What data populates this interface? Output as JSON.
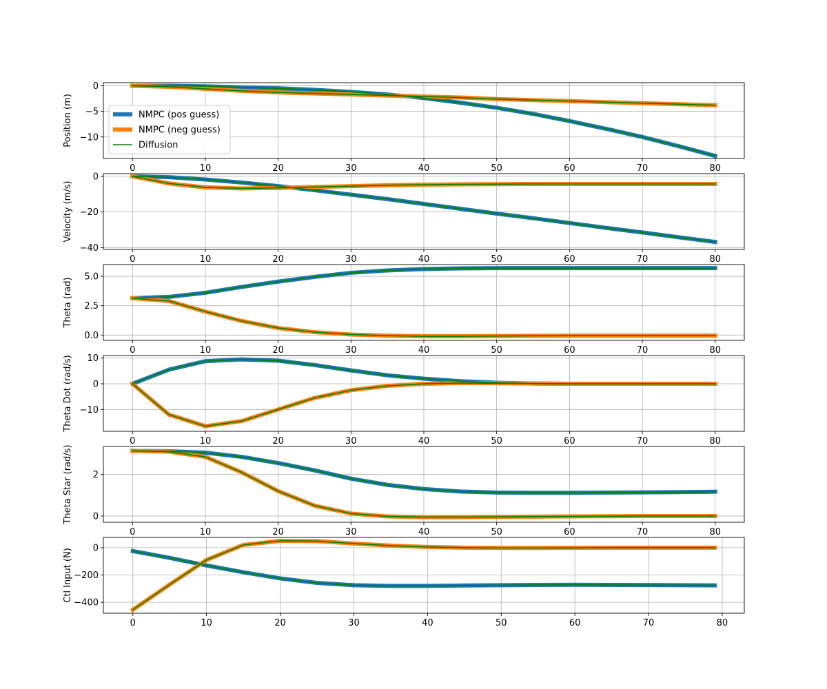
{
  "chart_data": [
    {
      "type": "line",
      "ylabel": "Position (m)",
      "xlim": [
        -4,
        84
      ],
      "ylim": [
        -14.2,
        0.6
      ],
      "xticks": [
        0,
        10,
        20,
        30,
        40,
        50,
        60,
        70,
        80
      ],
      "yticks": [
        0,
        -5,
        -10
      ],
      "ytick_labels": [
        "0",
        "−5",
        "−10"
      ],
      "grid": true,
      "legend": "center-left",
      "series": [
        {
          "name": "NMPC (pos guess)",
          "x": [
            0,
            5,
            10,
            15,
            20,
            25,
            30,
            35,
            40,
            45,
            50,
            55,
            60,
            65,
            70,
            75,
            80
          ],
          "values": [
            0,
            0,
            -0.1,
            -0.3,
            -0.5,
            -0.8,
            -1.2,
            -1.7,
            -2.4,
            -3.3,
            -4.3,
            -5.5,
            -6.9,
            -8.4,
            -10.0,
            -11.8,
            -13.7
          ]
        },
        {
          "name": "NMPC (neg guess)",
          "x": [
            0,
            5,
            10,
            15,
            20,
            25,
            30,
            35,
            40,
            45,
            50,
            55,
            60,
            65,
            70,
            75,
            80
          ],
          "values": [
            0,
            -0.2,
            -0.6,
            -1.0,
            -1.3,
            -1.5,
            -1.7,
            -1.9,
            -2.1,
            -2.3,
            -2.6,
            -2.8,
            -3.0,
            -3.2,
            -3.4,
            -3.6,
            -3.8
          ]
        },
        {
          "name": "Diffusion",
          "x": [
            0,
            5,
            10,
            15,
            20,
            25,
            30,
            35,
            40,
            45,
            50,
            55,
            60,
            65,
            70,
            75,
            80
          ],
          "values": [
            0,
            0,
            -0.1,
            -0.3,
            -0.5,
            -0.8,
            -1.2,
            -1.7,
            -2.4,
            -3.3,
            -4.3,
            -5.5,
            -6.9,
            -8.4,
            -10.0,
            -11.8,
            -13.7
          ]
        },
        {
          "name": "Diffusion",
          "x": [
            0,
            5,
            10,
            15,
            20,
            25,
            30,
            35,
            40,
            45,
            50,
            55,
            60,
            65,
            70,
            75,
            80
          ],
          "values": [
            0,
            -0.2,
            -0.6,
            -1.0,
            -1.3,
            -1.5,
            -1.7,
            -1.9,
            -2.1,
            -2.3,
            -2.6,
            -2.8,
            -3.0,
            -3.2,
            -3.4,
            -3.6,
            -3.8
          ]
        }
      ]
    },
    {
      "type": "line",
      "ylabel": "Velocity (m/s)",
      "xlim": [
        -4,
        84
      ],
      "ylim": [
        -41,
        1.5
      ],
      "xticks": [
        0,
        10,
        20,
        30,
        40,
        50,
        60,
        70,
        80
      ],
      "yticks": [
        0,
        -20,
        -40
      ],
      "ytick_labels": [
        "0",
        "−20",
        "−40"
      ],
      "grid": true,
      "series": [
        {
          "name": "NMPC (pos guess)",
          "x": [
            0,
            5,
            10,
            15,
            20,
            25,
            30,
            35,
            40,
            45,
            50,
            55,
            60,
            65,
            70,
            75,
            80
          ],
          "values": [
            0,
            -0.5,
            -1.8,
            -3.5,
            -5.5,
            -7.8,
            -10.3,
            -12.8,
            -15.5,
            -18.2,
            -20.9,
            -23.5,
            -26.2,
            -28.9,
            -31.5,
            -34.2,
            -36.8
          ]
        },
        {
          "name": "NMPC (neg guess)",
          "x": [
            0,
            5,
            10,
            15,
            20,
            25,
            30,
            35,
            40,
            45,
            50,
            55,
            60,
            65,
            70,
            75,
            80
          ],
          "values": [
            0,
            -4.0,
            -6.2,
            -6.8,
            -6.5,
            -6.0,
            -5.5,
            -5.0,
            -4.7,
            -4.5,
            -4.4,
            -4.3,
            -4.3,
            -4.3,
            -4.3,
            -4.3,
            -4.3
          ]
        },
        {
          "name": "Diffusion",
          "x": [
            0,
            5,
            10,
            15,
            20,
            25,
            30,
            35,
            40,
            45,
            50,
            55,
            60,
            65,
            70,
            75,
            80
          ],
          "values": [
            0,
            -0.5,
            -1.8,
            -3.5,
            -5.5,
            -7.8,
            -10.3,
            -12.8,
            -15.5,
            -18.2,
            -20.9,
            -23.5,
            -26.2,
            -28.9,
            -31.5,
            -34.2,
            -36.8
          ]
        },
        {
          "name": "Diffusion",
          "x": [
            0,
            5,
            10,
            15,
            20,
            25,
            30,
            35,
            40,
            45,
            50,
            55,
            60,
            65,
            70,
            75,
            80
          ],
          "values": [
            0,
            -4.0,
            -6.2,
            -6.8,
            -6.5,
            -6.0,
            -5.5,
            -5.0,
            -4.7,
            -4.5,
            -4.4,
            -4.3,
            -4.3,
            -4.3,
            -4.3,
            -4.3,
            -4.3
          ]
        }
      ]
    },
    {
      "type": "line",
      "ylabel": "Theta (rad)",
      "xlim": [
        -4,
        84
      ],
      "ylim": [
        -0.45,
        6.0
      ],
      "xticks": [
        0,
        10,
        20,
        30,
        40,
        50,
        60,
        70,
        80
      ],
      "yticks": [
        0,
        2.5,
        5.0
      ],
      "ytick_labels": [
        "0.0",
        "2.5",
        "5.0"
      ],
      "grid": true,
      "series": [
        {
          "name": "NMPC (pos guess)",
          "x": [
            0,
            5,
            10,
            15,
            20,
            25,
            30,
            35,
            40,
            45,
            50,
            55,
            60,
            65,
            70,
            75,
            80
          ],
          "values": [
            3.14,
            3.25,
            3.6,
            4.1,
            4.55,
            4.95,
            5.3,
            5.5,
            5.62,
            5.68,
            5.7,
            5.7,
            5.7,
            5.7,
            5.7,
            5.7,
            5.7
          ]
        },
        {
          "name": "NMPC (neg guess)",
          "x": [
            0,
            5,
            10,
            15,
            20,
            25,
            30,
            35,
            40,
            45,
            50,
            55,
            60,
            65,
            70,
            75,
            80
          ],
          "values": [
            3.14,
            2.9,
            2.0,
            1.2,
            0.6,
            0.25,
            0.05,
            -0.05,
            -0.1,
            -0.1,
            -0.08,
            -0.06,
            -0.05,
            -0.05,
            -0.05,
            -0.05,
            -0.05
          ]
        },
        {
          "name": "Diffusion",
          "x": [
            0,
            5,
            10,
            15,
            20,
            25,
            30,
            35,
            40,
            45,
            50,
            55,
            60,
            65,
            70,
            75,
            80
          ],
          "values": [
            3.14,
            3.25,
            3.6,
            4.1,
            4.55,
            4.95,
            5.3,
            5.5,
            5.62,
            5.68,
            5.7,
            5.7,
            5.7,
            5.7,
            5.7,
            5.7,
            5.7
          ]
        },
        {
          "name": "Diffusion",
          "x": [
            0,
            5,
            10,
            15,
            20,
            25,
            30,
            35,
            40,
            45,
            50,
            55,
            60,
            65,
            70,
            75,
            80
          ],
          "values": [
            3.14,
            2.9,
            2.0,
            1.2,
            0.6,
            0.25,
            0.05,
            -0.05,
            -0.1,
            -0.1,
            -0.08,
            -0.06,
            -0.05,
            -0.05,
            -0.05,
            -0.05,
            -0.05
          ]
        }
      ]
    },
    {
      "type": "line",
      "ylabel": "Theta Dot (rad/s)",
      "xlim": [
        -4,
        84
      ],
      "ylim": [
        -18.5,
        11
      ],
      "xticks": [
        0,
        10,
        20,
        30,
        40,
        50,
        60,
        70,
        80
      ],
      "yticks": [
        10,
        0,
        -10
      ],
      "ytick_labels": [
        "10",
        "0",
        "−10"
      ],
      "grid": true,
      "series": [
        {
          "name": "NMPC (pos guess)",
          "x": [
            0,
            5,
            10,
            15,
            20,
            25,
            30,
            35,
            40,
            45,
            50,
            55,
            60,
            65,
            70,
            75,
            80
          ],
          "values": [
            0,
            5.5,
            8.8,
            9.5,
            9.0,
            7.3,
            5.2,
            3.3,
            2.0,
            1.0,
            0.4,
            0.1,
            0,
            0,
            0,
            0,
            0
          ]
        },
        {
          "name": "NMPC (neg guess)",
          "x": [
            0,
            5,
            10,
            15,
            20,
            25,
            30,
            35,
            40,
            45,
            50,
            55,
            60,
            65,
            70,
            75,
            80
          ],
          "values": [
            0,
            -12.0,
            -16.5,
            -14.5,
            -10.0,
            -5.5,
            -2.5,
            -0.8,
            0,
            0.3,
            0.2,
            0.1,
            0,
            0,
            0,
            0,
            0
          ]
        },
        {
          "name": "Diffusion",
          "x": [
            0,
            5,
            10,
            15,
            20,
            25,
            30,
            35,
            40,
            45,
            50,
            55,
            60,
            65,
            70,
            75,
            80
          ],
          "values": [
            0,
            5.5,
            8.8,
            9.5,
            9.0,
            7.3,
            5.2,
            3.3,
            2.0,
            1.0,
            0.4,
            0.1,
            0,
            0,
            0,
            0,
            0
          ]
        },
        {
          "name": "Diffusion",
          "x": [
            0,
            5,
            10,
            15,
            20,
            25,
            30,
            35,
            40,
            45,
            50,
            55,
            60,
            65,
            70,
            75,
            80
          ],
          "values": [
            0,
            -12.0,
            -16.5,
            -14.5,
            -10.0,
            -5.5,
            -2.5,
            -0.8,
            0,
            0.3,
            0.2,
            0.1,
            0,
            0,
            0,
            0,
            0
          ]
        }
      ]
    },
    {
      "type": "line",
      "ylabel": "Theta Star (rad/s)",
      "xlim": [
        -4,
        84
      ],
      "ylim": [
        -0.3,
        3.35
      ],
      "xticks": [
        0,
        10,
        20,
        30,
        40,
        50,
        60,
        70,
        80
      ],
      "yticks": [
        2,
        0
      ],
      "ytick_labels": [
        "2",
        "0"
      ],
      "grid": true,
      "series": [
        {
          "name": "NMPC (pos guess)",
          "x": [
            0,
            5,
            10,
            15,
            20,
            25,
            30,
            35,
            40,
            45,
            50,
            55,
            60,
            65,
            70,
            75,
            80
          ],
          "values": [
            3.14,
            3.12,
            3.05,
            2.85,
            2.55,
            2.2,
            1.8,
            1.5,
            1.3,
            1.18,
            1.13,
            1.12,
            1.12,
            1.13,
            1.14,
            1.15,
            1.17
          ]
        },
        {
          "name": "NMPC (neg guess)",
          "x": [
            0,
            5,
            10,
            15,
            20,
            25,
            30,
            35,
            40,
            45,
            50,
            55,
            60,
            65,
            70,
            75,
            80
          ],
          "values": [
            3.14,
            3.1,
            2.85,
            2.1,
            1.2,
            0.5,
            0.12,
            -0.02,
            -0.05,
            -0.05,
            -0.04,
            -0.03,
            -0.02,
            -0.01,
            0,
            0,
            0
          ]
        },
        {
          "name": "Diffusion",
          "x": [
            0,
            5,
            10,
            15,
            20,
            25,
            30,
            35,
            40,
            45,
            50,
            55,
            60,
            65,
            70,
            75,
            80
          ],
          "values": [
            3.14,
            3.12,
            3.05,
            2.85,
            2.55,
            2.2,
            1.8,
            1.5,
            1.3,
            1.18,
            1.13,
            1.12,
            1.12,
            1.13,
            1.14,
            1.15,
            1.17
          ]
        },
        {
          "name": "Diffusion",
          "x": [
            0,
            5,
            10,
            15,
            20,
            25,
            30,
            35,
            40,
            45,
            50,
            55,
            60,
            65,
            70,
            75,
            80
          ],
          "values": [
            3.14,
            3.1,
            2.85,
            2.1,
            1.2,
            0.5,
            0.12,
            -0.02,
            -0.05,
            -0.05,
            -0.04,
            -0.03,
            -0.02,
            -0.01,
            0,
            0,
            0
          ]
        }
      ]
    },
    {
      "type": "line",
      "ylabel": "Ctl Input (N)",
      "xlim": [
        -4,
        83
      ],
      "ylim": [
        -480,
        75
      ],
      "xticks": [
        0,
        10,
        20,
        30,
        40,
        50,
        60,
        70,
        80
      ],
      "yticks": [
        0,
        -200,
        -400
      ],
      "ytick_labels": [
        "0",
        "−200",
        "−400"
      ],
      "grid": true,
      "series": [
        {
          "name": "NMPC (pos guess)",
          "x": [
            0,
            5,
            10,
            15,
            20,
            25,
            30,
            35,
            40,
            45,
            50,
            55,
            60,
            65,
            70,
            75,
            79
          ],
          "values": [
            -25,
            -75,
            -130,
            -180,
            -225,
            -258,
            -275,
            -280,
            -280,
            -277,
            -275,
            -273,
            -272,
            -273,
            -274,
            -275,
            -276
          ]
        },
        {
          "name": "NMPC (neg guess)",
          "x": [
            0,
            5,
            10,
            15,
            20,
            25,
            30,
            35,
            40,
            45,
            50,
            55,
            60,
            65,
            70,
            75,
            79
          ],
          "values": [
            -455,
            -270,
            -90,
            20,
            50,
            48,
            30,
            15,
            5,
            0,
            -2,
            -2,
            -1,
            0,
            0,
            0,
            0
          ]
        },
        {
          "name": "Diffusion",
          "x": [
            0,
            5,
            10,
            15,
            20,
            25,
            30,
            35,
            40,
            45,
            50,
            55,
            60,
            65,
            70,
            75,
            79
          ],
          "values": [
            -25,
            -75,
            -130,
            -180,
            -225,
            -258,
            -275,
            -280,
            -280,
            -277,
            -275,
            -273,
            -272,
            -273,
            -274,
            -275,
            -276
          ]
        },
        {
          "name": "Diffusion",
          "x": [
            0,
            5,
            10,
            15,
            20,
            25,
            30,
            35,
            40,
            45,
            50,
            55,
            60,
            65,
            70,
            75,
            79
          ],
          "values": [
            -455,
            -270,
            -90,
            20,
            50,
            48,
            30,
            15,
            5,
            0,
            -2,
            -2,
            -1,
            0,
            0,
            0,
            0
          ]
        }
      ]
    }
  ],
  "legend": {
    "entries": [
      {
        "label": "NMPC (pos guess)",
        "color": "#1f77b4"
      },
      {
        "label": "NMPC (neg guess)",
        "color": "#ff7f0e"
      },
      {
        "label": "Diffusion",
        "color": "#008000"
      }
    ]
  },
  "colors": {
    "pos": "#1f77b4",
    "neg": "#ff7f0e",
    "diffusion": "#008000",
    "grid": "#b0b0b0",
    "axis": "#000000"
  }
}
